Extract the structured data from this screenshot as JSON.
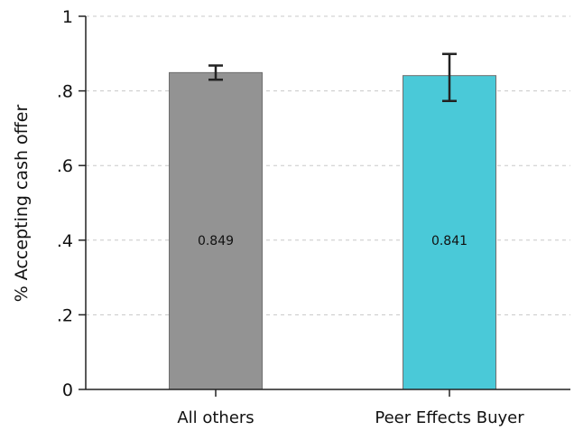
{
  "chart_data": {
    "type": "bar",
    "categories": [
      "All others",
      "Peer Effects Buyer"
    ],
    "values": [
      0.849,
      0.841
    ],
    "value_labels": [
      "0.849",
      "0.841"
    ],
    "error_bars": [
      {
        "low": 0.83,
        "high": 0.868
      },
      {
        "low": 0.773,
        "high": 0.899
      }
    ],
    "colors": [
      "#939393",
      "#4ac9d8"
    ],
    "xlabel": "",
    "ylabel": "% Accepting cash offer",
    "ylim": [
      0,
      1
    ],
    "yticks": [
      0,
      0.2,
      0.4,
      0.6,
      0.8,
      1
    ],
    "ytick_labels": [
      "0",
      ".2",
      ".4",
      ".6",
      ".8",
      "1"
    ],
    "grid": true,
    "legend": "none"
  }
}
